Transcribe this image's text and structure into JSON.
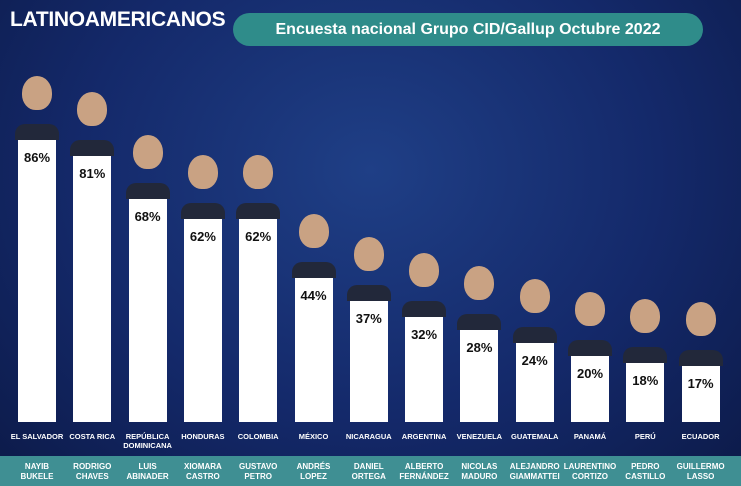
{
  "chart_data": {
    "type": "bar",
    "title": "LATINOAMERICANOS",
    "subtitle": "Encuesta nacional Grupo CID/Gallup Octubre 2022",
    "categories": [
      "EL SALVADOR",
      "COSTA RICA",
      "REPÚBLICA DOMINICANA",
      "HONDURAS",
      "COLOMBIA",
      "MÉXICO",
      "NICARAGUA",
      "ARGENTINA",
      "VENEZUELA",
      "GUATEMALA",
      "PANAMÁ",
      "PERÚ",
      "ECUADOR"
    ],
    "names": [
      "NAYIB BUKELE",
      "RODRIGO CHAVES",
      "LUIS ABINADER",
      "XIOMARA CASTRO",
      "GUSTAVO PETRO",
      "ANDRÉS LOPEZ",
      "DANIEL ORTEGA",
      "ALBERTO FERNÁNDEZ",
      "NICOLAS MADURO",
      "ALEJANDRO GIAMMATTEI",
      "LAURENTINO CORTIZO",
      "PEDRO CASTILLO",
      "GUILLERMO LASSO"
    ],
    "values": [
      86,
      81,
      68,
      62,
      62,
      44,
      37,
      32,
      28,
      24,
      20,
      18,
      17
    ],
    "value_labels": [
      "86%",
      "81%",
      "68%",
      "62%",
      "62%",
      "44%",
      "37%",
      "32%",
      "28%",
      "24%",
      "20%",
      "18%",
      "17%"
    ],
    "color": "#ffffff"
  }
}
